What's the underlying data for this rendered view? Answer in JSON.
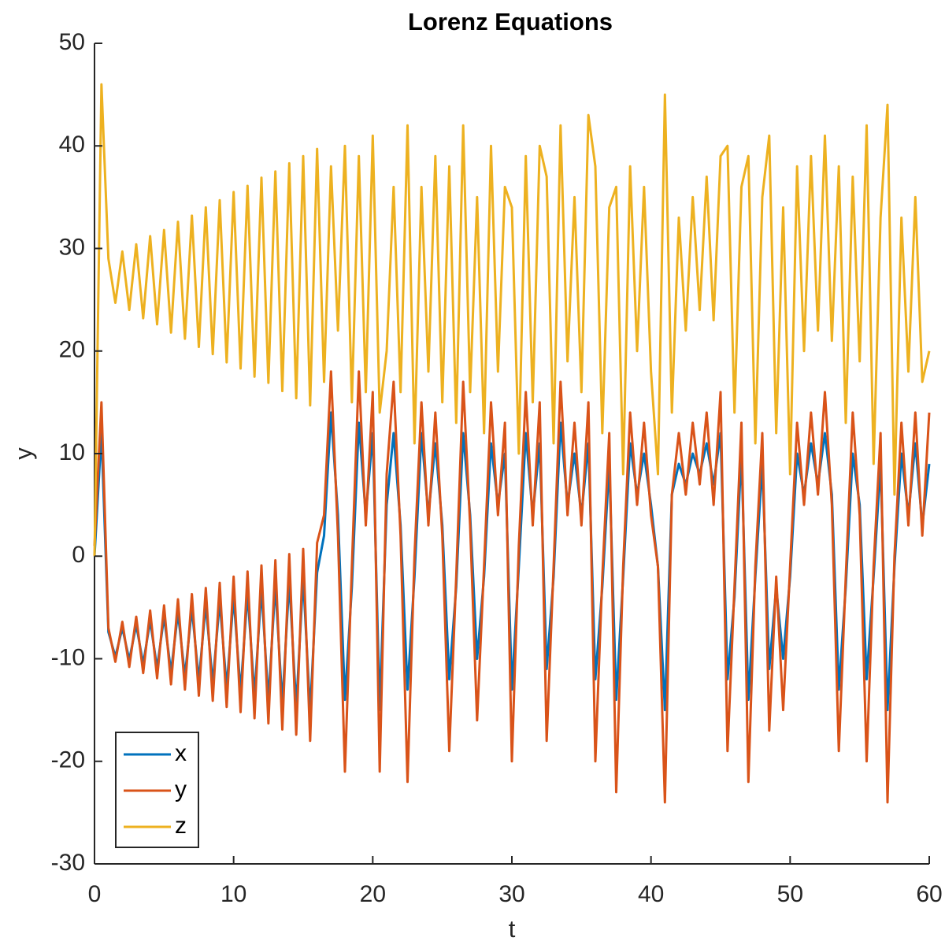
{
  "chart_data": {
    "type": "line",
    "title": "Lorenz Equations",
    "x_label": "t",
    "y_label": "y",
    "xlim": [
      0,
      60
    ],
    "ylim": [
      -30,
      50
    ],
    "xticks": [
      0,
      10,
      20,
      30,
      40,
      50,
      60
    ],
    "yticks": [
      -30,
      -20,
      -10,
      0,
      10,
      20,
      30,
      40,
      50
    ],
    "grid": false,
    "legend_position": "lower left",
    "x": [
      0,
      0.5,
      1,
      1.5,
      2,
      2.5,
      3,
      3.5,
      4,
      4.5,
      5,
      5.5,
      6,
      6.5,
      7,
      7.5,
      8,
      8.5,
      9,
      9.5,
      10,
      10.5,
      11,
      11.5,
      12,
      12.5,
      13,
      13.5,
      14,
      14.5,
      15,
      15.5,
      16,
      16.5,
      17,
      17.5,
      18,
      18.5,
      19,
      19.5,
      20,
      20.5,
      21,
      21.5,
      22,
      22.5,
      23,
      23.5,
      24,
      24.5,
      25,
      25.5,
      26,
      26.5,
      27,
      27.5,
      28,
      28.5,
      29,
      29.5,
      30,
      30.5,
      31,
      31.5,
      32,
      32.5,
      33,
      33.5,
      34,
      34.5,
      35,
      35.5,
      36,
      36.5,
      37,
      37.5,
      38,
      38.5,
      39,
      39.5,
      40,
      40.5,
      41,
      41.5,
      42,
      42.5,
      43,
      43.5,
      44,
      44.5,
      45,
      45.5,
      46,
      46.5,
      47,
      47.5,
      48,
      48.5,
      49,
      49.5,
      50,
      50.5,
      51,
      51.5,
      52,
      52.5,
      53,
      53.5,
      54,
      54.5,
      55,
      55.5,
      56,
      56.5,
      57,
      57.5,
      58,
      58.5,
      59,
      59.5,
      60
    ],
    "series": [
      {
        "name": "x",
        "color": "#0072BD",
        "values": [
          0,
          12,
          -7.4,
          -9.8,
          -7.0,
          -10.1,
          -6.7,
          -10.5,
          -6.3,
          -10.9,
          -5.9,
          -11.3,
          -5.5,
          -11.7,
          -5.1,
          -12.1,
          -4.7,
          -12.4,
          -4.4,
          -12.8,
          -4.0,
          -13.2,
          -3.6,
          -13.6,
          -3.2,
          -14.0,
          -2.8,
          -14.4,
          -2.4,
          -14.7,
          -2.1,
          -15.2,
          -1.6,
          2,
          14,
          4,
          -14,
          -3,
          13,
          4,
          12,
          -15,
          5,
          12,
          3,
          -13,
          -2,
          12,
          4,
          11,
          3,
          -12,
          -3,
          12,
          4,
          -10,
          -2,
          11,
          5,
          10,
          -13,
          -1,
          12,
          4,
          11,
          -11,
          -2,
          13,
          5,
          10,
          4,
          11,
          -12,
          -3,
          9,
          -14,
          -2,
          11,
          6,
          10,
          5,
          -1,
          -15,
          6,
          9,
          7,
          10,
          8,
          11,
          7,
          12,
          -12,
          -4,
          10,
          -14,
          -2,
          9,
          -11,
          -3,
          -10,
          -2,
          10,
          6,
          11,
          7,
          12,
          6,
          -13,
          -3,
          10,
          5,
          -12,
          -2,
          9,
          -15,
          -1,
          10,
          4,
          11,
          3,
          9
        ]
      },
      {
        "name": "y",
        "color": "#D95319",
        "values": [
          1,
          15,
          -7.0,
          -10.3,
          -6.4,
          -10.8,
          -5.9,
          -11.4,
          -5.3,
          -11.9,
          -4.8,
          -12.5,
          -4.2,
          -13.0,
          -3.7,
          -13.6,
          -3.1,
          -14.1,
          -2.6,
          -14.7,
          -2.0,
          -15.2,
          -1.5,
          -15.8,
          -0.9,
          -16.3,
          -0.4,
          -16.9,
          0.2,
          -17.4,
          0.7,
          -18.0,
          1.3,
          4,
          18,
          2,
          -21,
          -1,
          18,
          3,
          16,
          -21,
          8,
          17,
          2,
          -22,
          0,
          15,
          3,
          14,
          2,
          -19,
          -2,
          17,
          3,
          -16,
          -1,
          15,
          4,
          13,
          -20,
          1,
          16,
          3,
          15,
          -18,
          -1,
          17,
          4,
          13,
          3,
          15,
          -20,
          -2,
          12,
          -23,
          -1,
          14,
          5,
          13,
          4,
          -1,
          -24,
          6,
          12,
          6,
          13,
          7,
          14,
          5,
          16,
          -19,
          -3,
          13,
          -22,
          -1,
          12,
          -17,
          -2,
          -15,
          -1,
          13,
          5,
          14,
          6,
          16,
          5,
          -19,
          -2,
          14,
          4,
          -20,
          -1,
          12,
          -24,
          0,
          13,
          3,
          14,
          2,
          14
        ]
      },
      {
        "name": "z",
        "color": "#EDB120",
        "values": [
          0,
          46,
          29.0,
          24.7,
          29.7,
          24.0,
          30.4,
          23.2,
          31.2,
          22.6,
          31.8,
          21.8,
          32.6,
          21.2,
          33.2,
          20.4,
          34.0,
          19.7,
          34.7,
          18.9,
          35.5,
          18.3,
          36.1,
          17.5,
          36.9,
          16.9,
          37.5,
          16.1,
          38.3,
          15.4,
          39.0,
          14.7,
          39.7,
          17,
          38,
          22,
          40,
          15,
          39,
          16,
          41,
          14,
          20,
          36,
          16,
          42,
          11,
          36,
          18,
          39,
          15,
          38,
          13,
          42,
          16,
          35,
          12,
          40,
          18,
          36,
          34,
          10,
          39,
          15,
          40,
          37,
          11,
          42,
          19,
          35,
          16,
          43,
          38,
          12,
          34,
          36,
          8,
          38,
          20,
          36,
          18,
          8,
          45,
          14,
          33,
          22,
          35,
          24,
          37,
          23,
          39,
          40,
          14,
          36,
          39,
          11,
          35,
          41,
          12,
          34,
          8,
          38,
          20,
          39,
          22,
          41,
          21,
          38,
          13,
          37,
          19,
          42,
          9,
          33,
          44,
          6,
          33,
          18,
          35,
          17,
          20
        ]
      }
    ]
  }
}
